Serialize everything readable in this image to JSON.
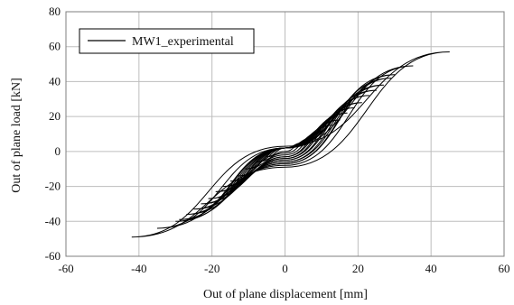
{
  "chart_data": {
    "type": "line",
    "title": "",
    "xlabel": "Out of plane displacement  [mm]",
    "ylabel": "Out of plane load  [kN]",
    "xlim": [
      -60,
      60
    ],
    "ylim": [
      -60,
      80
    ],
    "xticks": [
      -60,
      -40,
      -20,
      0,
      20,
      40,
      60
    ],
    "yticks": [
      -60,
      -40,
      -20,
      0,
      20,
      40,
      60,
      80
    ],
    "xtick_labels": [
      "-60",
      "-40",
      "-20",
      "0",
      "20",
      "40",
      "60"
    ],
    "ytick_labels": [
      "-60",
      "-40",
      "-20",
      "0",
      "20",
      "40",
      "60",
      "80"
    ],
    "grid": true,
    "legend_position": "top-left",
    "series": [
      {
        "name": "MW1_experimental",
        "color": "#000000",
        "loops": [
          {
            "x": [
              -5,
              0,
              5,
              0,
              -5
            ],
            "y": [
              -3,
              2,
              5,
              0,
              -3
            ]
          },
          {
            "x": [
              -8,
              0,
              8,
              0,
              -8
            ],
            "y": [
              -6,
              2,
              8,
              -1,
              -6
            ]
          },
          {
            "x": [
              -11,
              0,
              11,
              0,
              -11
            ],
            "y": [
              -10,
              2,
              12,
              -2,
              -10
            ]
          },
          {
            "x": [
              -13,
              0,
              13,
              0,
              -13
            ],
            "y": [
              -14,
              2,
              15,
              -3,
              -14
            ]
          },
          {
            "x": [
              -15,
              0,
              15,
              0,
              -15
            ],
            "y": [
              -17,
              2,
              18,
              -3,
              -17
            ]
          },
          {
            "x": [
              -17,
              0,
              17,
              0,
              -17
            ],
            "y": [
              -20,
              2,
              22,
              -4,
              -20
            ]
          },
          {
            "x": [
              -19,
              0,
              19,
              0,
              -19
            ],
            "y": [
              -23,
              2,
              25,
              -4,
              -23
            ]
          },
          {
            "x": [
              -21,
              0,
              21,
              0,
              -21
            ],
            "y": [
              -27,
              2,
              28,
              -5,
              -27
            ]
          },
          {
            "x": [
              -23,
              0,
              23,
              0,
              -23
            ],
            "y": [
              -30,
              2,
              32,
              -5,
              -30
            ]
          },
          {
            "x": [
              -25,
              0,
              25,
              0,
              -25
            ],
            "y": [
              -33,
              2,
              35,
              -6,
              -33
            ]
          },
          {
            "x": [
              -27,
              0,
              27,
              0,
              -27
            ],
            "y": [
              -36,
              2,
              38,
              -6,
              -36
            ]
          },
          {
            "x": [
              -29,
              0,
              29,
              0,
              -29
            ],
            "y": [
              -39,
              2,
              42,
              -7,
              -39
            ]
          },
          {
            "x": [
              -30,
              0,
              30,
              0,
              -30
            ],
            "y": [
              -40,
              2,
              44,
              -7,
              -40
            ]
          },
          {
            "x": [
              -35,
              0,
              35,
              0,
              -35
            ],
            "y": [
              -44,
              2,
              49,
              -8,
              -44
            ]
          },
          {
            "x": [
              -42,
              0,
              45,
              0,
              -42
            ],
            "y": [
              -49,
              3,
              57,
              -9,
              -49
            ]
          }
        ]
      }
    ]
  },
  "colors": {
    "grid": "#bdbdbd",
    "axis": "#7f7f7f",
    "series": "#000000"
  }
}
